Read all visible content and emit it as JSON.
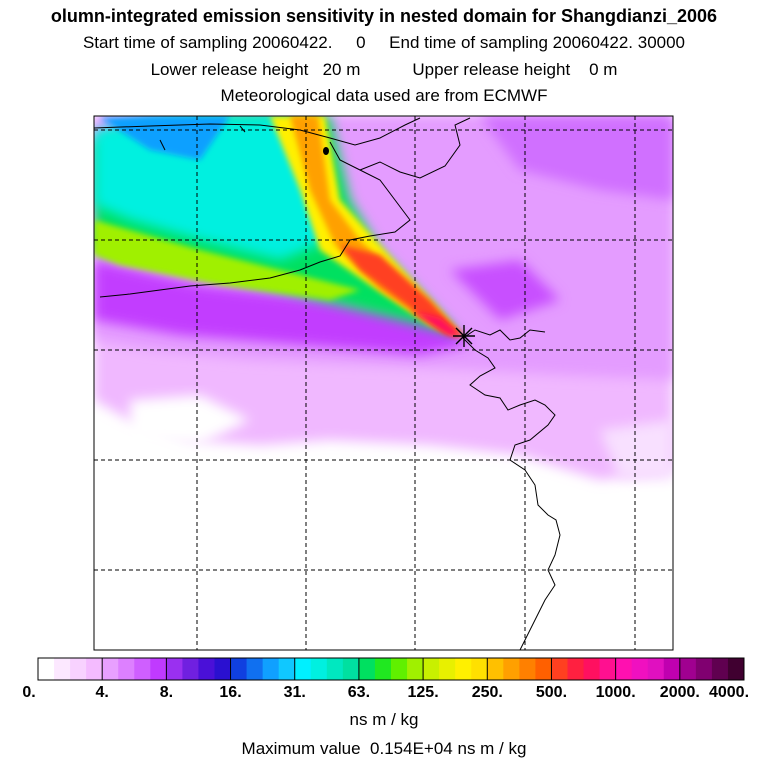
{
  "header": {
    "title": "olumn-integrated emission sensitivity in nested domain for Shangdianzi_2006",
    "start_label": "Start time of sampling",
    "start_value": "20060422.     0",
    "end_label": "End time of sampling",
    "end_value": "20060422. 30000",
    "lower_label": "Lower release height",
    "lower_value": "20 m",
    "upper_label": "Upper release height",
    "upper_value": "0 m",
    "met": "Meteorological data used are from ECMWF"
  },
  "colorbar": {
    "labels": [
      "0.",
      "4.",
      "8.",
      "16.",
      "31.",
      "63.",
      "125.",
      "250.",
      "500.",
      "1000.",
      "2000.",
      "4000."
    ],
    "colors": [
      "#ffffff",
      "#fce8ff",
      "#f8d2ff",
      "#f4bbff",
      "#e8a0ff",
      "#dd80ff",
      "#cf5fff",
      "#c03aff",
      "#9a30f0",
      "#7020e0",
      "#4a10d8",
      "#2a10d0",
      "#1040e0",
      "#1070f0",
      "#10a0ff",
      "#10c8ff",
      "#00f0ff",
      "#00f0e0",
      "#00e8c0",
      "#00e0a0",
      "#00e060",
      "#20e820",
      "#60f000",
      "#a0f000",
      "#c8f000",
      "#e8f000",
      "#fff000",
      "#ffe000",
      "#ffc000",
      "#ffa000",
      "#ff8000",
      "#ff6000",
      "#ff4020",
      "#ff2040",
      "#ff1060",
      "#ff1090",
      "#ff10b0",
      "#f010c0",
      "#e010c0",
      "#c000b0",
      "#a00090",
      "#800070",
      "#600050",
      "#400030"
    ],
    "units": "ns m / kg"
  },
  "footer": {
    "max_label": "Maximum value",
    "max_value": "0.154E+04 ns m / kg"
  },
  "map": {
    "receptor_marker": "receptor-star-icon"
  }
}
